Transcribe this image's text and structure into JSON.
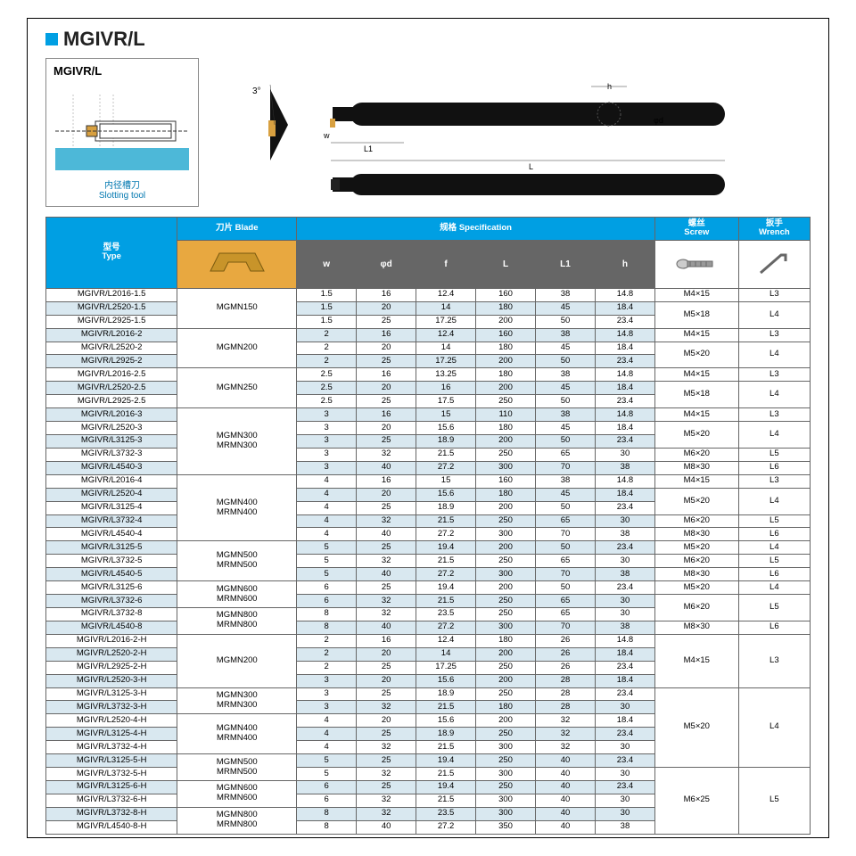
{
  "title": "MGIVR/L",
  "diagram": {
    "title": "MGIVR/L",
    "label_cn": "内径槽刀",
    "label_en": "Slotting tool"
  },
  "tool_labels": {
    "angle": "3°",
    "w": "w",
    "L1": "L1",
    "L": "L",
    "h": "h",
    "phi_d": "φd"
  },
  "headers": {
    "type_cn": "型号",
    "type_en": "Type",
    "blade_cn": "刀片",
    "blade_en": "Blade",
    "spec_cn": "规格",
    "spec_en": "Specification",
    "screw_cn": "螺丝",
    "screw_en": "Screw",
    "wrench_cn": "扳手",
    "wrench_en": "Wrench",
    "cols": [
      "w",
      "φd",
      "f",
      "L",
      "L1",
      "h"
    ]
  },
  "groups": [
    {
      "blade": "MGMN150",
      "blade_span": 3,
      "rows": [
        {
          "type": "MGIVR/L2016-1.5",
          "alt": 0,
          "v": [
            "1.5",
            "16",
            "12.4",
            "160",
            "38",
            "14.8"
          ],
          "screw": "M4×15",
          "wrench": "L3",
          "screw_span": 1,
          "wrench_span": 1
        },
        {
          "type": "MGIVR/L2520-1.5",
          "alt": 1,
          "v": [
            "1.5",
            "20",
            "14",
            "180",
            "45",
            "18.4"
          ],
          "screw": "M5×18",
          "wrench": "L4",
          "screw_span": 2,
          "wrench_span": 2
        },
        {
          "type": "MGIVR/L2925-1.5",
          "alt": 0,
          "v": [
            "1.5",
            "25",
            "17.25",
            "200",
            "50",
            "23.4"
          ]
        }
      ]
    },
    {
      "blade": "MGMN200",
      "blade_span": 3,
      "rows": [
        {
          "type": "MGIVR/L2016-2",
          "alt": 1,
          "v": [
            "2",
            "16",
            "12.4",
            "160",
            "38",
            "14.8"
          ],
          "screw": "M4×15",
          "wrench": "L3",
          "screw_span": 1,
          "wrench_span": 1
        },
        {
          "type": "MGIVR/L2520-2",
          "alt": 0,
          "v": [
            "2",
            "20",
            "14",
            "180",
            "45",
            "18.4"
          ],
          "screw": "M5×20",
          "wrench": "L4",
          "screw_span": 2,
          "wrench_span": 2
        },
        {
          "type": "MGIVR/L2925-2",
          "alt": 1,
          "v": [
            "2",
            "25",
            "17.25",
            "200",
            "50",
            "23.4"
          ]
        }
      ]
    },
    {
      "blade": "MGMN250",
      "blade_span": 3,
      "rows": [
        {
          "type": "MGIVR/L2016-2.5",
          "alt": 0,
          "v": [
            "2.5",
            "16",
            "13.25",
            "180",
            "38",
            "14.8"
          ],
          "screw": "M4×15",
          "wrench": "L3",
          "screw_span": 1,
          "wrench_span": 1
        },
        {
          "type": "MGIVR/L2520-2.5",
          "alt": 1,
          "v": [
            "2.5",
            "20",
            "16",
            "200",
            "45",
            "18.4"
          ],
          "screw": "M5×18",
          "wrench": "L4",
          "screw_span": 2,
          "wrench_span": 2
        },
        {
          "type": "MGIVR/L2925-2.5",
          "alt": 0,
          "v": [
            "2.5",
            "25",
            "17.5",
            "250",
            "50",
            "23.4"
          ]
        }
      ]
    },
    {
      "blade": "MGMN300\nMRMN300",
      "blade_span": 5,
      "rows": [
        {
          "type": "MGIVR/L2016-3",
          "alt": 1,
          "v": [
            "3",
            "16",
            "15",
            "110",
            "38",
            "14.8"
          ],
          "screw": "M4×15",
          "wrench": "L3",
          "screw_span": 1,
          "wrench_span": 1
        },
        {
          "type": "MGIVR/L2520-3",
          "alt": 0,
          "v": [
            "3",
            "20",
            "15.6",
            "180",
            "45",
            "18.4"
          ],
          "screw": "M5×20",
          "wrench": "L4",
          "screw_span": 2,
          "wrench_span": 2
        },
        {
          "type": "MGIVR/L3125-3",
          "alt": 1,
          "v": [
            "3",
            "25",
            "18.9",
            "200",
            "50",
            "23.4"
          ]
        },
        {
          "type": "MGIVR/L3732-3",
          "alt": 0,
          "v": [
            "3",
            "32",
            "21.5",
            "250",
            "65",
            "30"
          ],
          "screw": "M6×20",
          "wrench": "L5",
          "screw_span": 1,
          "wrench_span": 1
        },
        {
          "type": "MGIVR/L4540-3",
          "alt": 1,
          "v": [
            "3",
            "40",
            "27.2",
            "300",
            "70",
            "38"
          ],
          "screw": "M8×30",
          "wrench": "L6",
          "screw_span": 1,
          "wrench_span": 1
        }
      ]
    },
    {
      "blade": "MGMN400\nMRMN400",
      "blade_span": 5,
      "rows": [
        {
          "type": "MGIVR/L2016-4",
          "alt": 0,
          "v": [
            "4",
            "16",
            "15",
            "160",
            "38",
            "14.8"
          ],
          "screw": "M4×15",
          "wrench": "L3",
          "screw_span": 1,
          "wrench_span": 1
        },
        {
          "type": "MGIVR/L2520-4",
          "alt": 1,
          "v": [
            "4",
            "20",
            "15.6",
            "180",
            "45",
            "18.4"
          ],
          "screw": "M5×20",
          "wrench": "L4",
          "screw_span": 2,
          "wrench_span": 2
        },
        {
          "type": "MGIVR/L3125-4",
          "alt": 0,
          "v": [
            "4",
            "25",
            "18.9",
            "200",
            "50",
            "23.4"
          ]
        },
        {
          "type": "MGIVR/L3732-4",
          "alt": 1,
          "v": [
            "4",
            "32",
            "21.5",
            "250",
            "65",
            "30"
          ],
          "screw": "M6×20",
          "wrench": "L5",
          "screw_span": 1,
          "wrench_span": 1
        },
        {
          "type": "MGIVR/L4540-4",
          "alt": 0,
          "v": [
            "4",
            "40",
            "27.2",
            "300",
            "70",
            "38"
          ],
          "screw": "M8×30",
          "wrench": "L6",
          "screw_span": 1,
          "wrench_span": 1
        }
      ]
    },
    {
      "blade": "MGMN500\nMRMN500",
      "blade_span": 3,
      "rows": [
        {
          "type": "MGIVR/L3125-5",
          "alt": 1,
          "v": [
            "5",
            "25",
            "19.4",
            "200",
            "50",
            "23.4"
          ],
          "screw": "M5×20",
          "wrench": "L4",
          "screw_span": 1,
          "wrench_span": 1
        },
        {
          "type": "MGIVR/L3732-5",
          "alt": 0,
          "v": [
            "5",
            "32",
            "21.5",
            "250",
            "65",
            "30"
          ],
          "screw": "M6×20",
          "wrench": "L5",
          "screw_span": 1,
          "wrench_span": 1
        },
        {
          "type": "MGIVR/L4540-5",
          "alt": 1,
          "v": [
            "5",
            "40",
            "27.2",
            "300",
            "70",
            "38"
          ],
          "screw": "M8×30",
          "wrench": "L6",
          "screw_span": 1,
          "wrench_span": 1
        }
      ]
    },
    {
      "blade": "MGMN600\nMRMN600",
      "blade_span": 2,
      "rows": [
        {
          "type": "MGIVR/L3125-6",
          "alt": 0,
          "v": [
            "6",
            "25",
            "19.4",
            "200",
            "50",
            "23.4"
          ],
          "screw": "M5×20",
          "wrench": "L4",
          "screw_span": 1,
          "wrench_span": 1
        },
        {
          "type": "MGIVR/L3732-6",
          "alt": 1,
          "v": [
            "6",
            "32",
            "21.5",
            "250",
            "65",
            "30"
          ],
          "screw": "M6×20",
          "wrench": "L5",
          "screw_span": 2,
          "wrench_span": 2
        }
      ]
    },
    {
      "blade": "MGMN800\nMRMN800",
      "blade_span": 2,
      "rows": [
        {
          "type": "MGIVR/L3732-8",
          "alt": 0,
          "v": [
            "8",
            "32",
            "23.5",
            "250",
            "65",
            "30"
          ]
        },
        {
          "type": "MGIVR/L4540-8",
          "alt": 1,
          "v": [
            "8",
            "40",
            "27.2",
            "300",
            "70",
            "38"
          ],
          "screw": "M8×30",
          "wrench": "L6",
          "screw_span": 1,
          "wrench_span": 1
        }
      ]
    },
    {
      "blade": "MGMN200",
      "blade_span": 4,
      "rows": [
        {
          "type": "MGIVR/L2016-2-H",
          "alt": 0,
          "v": [
            "2",
            "16",
            "12.4",
            "180",
            "26",
            "14.8"
          ],
          "screw": "M4×15",
          "wrench": "L3",
          "screw_span": 4,
          "wrench_span": 4
        },
        {
          "type": "MGIVR/L2520-2-H",
          "alt": 1,
          "v": [
            "2",
            "20",
            "14",
            "200",
            "26",
            "18.4"
          ]
        },
        {
          "type": "MGIVR/L2925-2-H",
          "alt": 0,
          "v": [
            "2",
            "25",
            "17.25",
            "250",
            "26",
            "23.4"
          ]
        },
        {
          "type": "MGIVR/L2520-3-H",
          "alt": 1,
          "v": [
            "3",
            "20",
            "15.6",
            "200",
            "28",
            "18.4"
          ]
        }
      ]
    },
    {
      "blade": "MGMN300\nMRMN300",
      "blade_span": 2,
      "rows": [
        {
          "type": "MGIVR/L3125-3-H",
          "alt": 0,
          "v": [
            "3",
            "25",
            "18.9",
            "250",
            "28",
            "23.4"
          ],
          "screw": "M5×20",
          "wrench": "L4",
          "screw_span": 6,
          "wrench_span": 6
        },
        {
          "type": "MGIVR/L3732-3-H",
          "alt": 1,
          "v": [
            "3",
            "32",
            "21.5",
            "180",
            "28",
            "30"
          ]
        }
      ]
    },
    {
      "blade": "MGMN400\nMRMN400",
      "blade_span": 3,
      "rows": [
        {
          "type": "MGIVR/L2520-4-H",
          "alt": 0,
          "v": [
            "4",
            "20",
            "15.6",
            "200",
            "32",
            "18.4"
          ]
        },
        {
          "type": "MGIVR/L3125-4-H",
          "alt": 1,
          "v": [
            "4",
            "25",
            "18.9",
            "250",
            "32",
            "23.4"
          ]
        },
        {
          "type": "MGIVR/L3732-4-H",
          "alt": 0,
          "v": [
            "4",
            "32",
            "21.5",
            "300",
            "32",
            "30"
          ]
        }
      ]
    },
    {
      "blade": "MGMN500\nMRMN500",
      "blade_span": 2,
      "rows": [
        {
          "type": "MGIVR/L3125-5-H",
          "alt": 1,
          "v": [
            "5",
            "25",
            "19.4",
            "250",
            "40",
            "23.4"
          ]
        },
        {
          "type": "MGIVR/L3732-5-H",
          "alt": 0,
          "v": [
            "5",
            "32",
            "21.5",
            "300",
            "40",
            "30"
          ],
          "screw": "M6×25",
          "wrench": "L5",
          "screw_span": 5,
          "wrench_span": 5
        }
      ]
    },
    {
      "blade": "MGMN600\nMRMN600",
      "blade_span": 2,
      "rows": [
        {
          "type": "MGIVR/L3125-6-H",
          "alt": 1,
          "v": [
            "6",
            "25",
            "19.4",
            "250",
            "40",
            "23.4"
          ]
        },
        {
          "type": "MGIVR/L3732-6-H",
          "alt": 0,
          "v": [
            "6",
            "32",
            "21.5",
            "300",
            "40",
            "30"
          ]
        }
      ]
    },
    {
      "blade": "MGMN800\nMRMN800",
      "blade_span": 2,
      "rows": [
        {
          "type": "MGIVR/L3732-8-H",
          "alt": 1,
          "v": [
            "8",
            "32",
            "23.5",
            "300",
            "40",
            "30"
          ]
        },
        {
          "type": "MGIVR/L4540-8-H",
          "alt": 0,
          "v": [
            "8",
            "40",
            "27.2",
            "350",
            "40",
            "38"
          ]
        }
      ]
    }
  ]
}
